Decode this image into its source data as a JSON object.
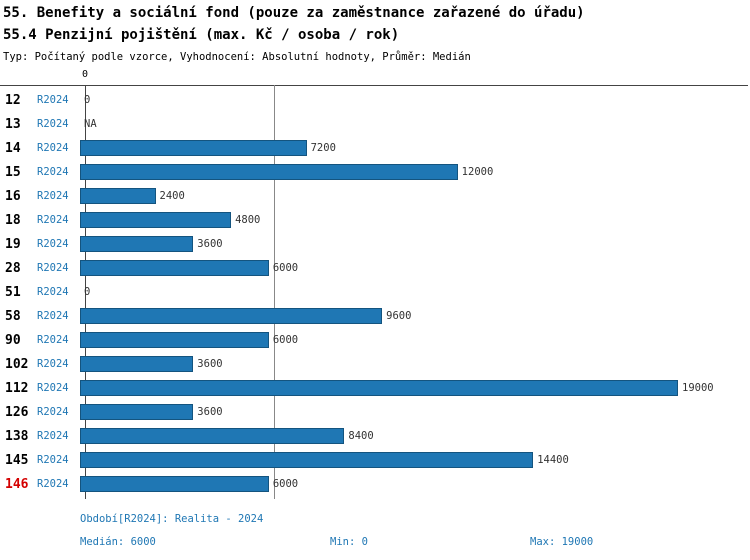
{
  "title_line1": "55. Benefity a sociální fond (pouze za zaměstnance zařazené do úřadu)",
  "title_line2": "55.4 Penzijní pojištění (max. Kč / osoba / rok)",
  "subtitle": "Typ: Počítaný podle vzorce, Vyhodnocení: Absolutní hodnoty, Průměr: Medián",
  "axis_zero_label": "0",
  "chart_data": {
    "type": "bar",
    "orientation": "horizontal",
    "categories": [
      "12",
      "13",
      "14",
      "15",
      "16",
      "18",
      "19",
      "28",
      "51",
      "58",
      "90",
      "102",
      "112",
      "126",
      "138",
      "145",
      "146"
    ],
    "period_label": "R2024",
    "values": [
      0,
      null,
      7200,
      12000,
      2400,
      4800,
      3600,
      6000,
      0,
      9600,
      6000,
      3600,
      19000,
      3600,
      8400,
      14400,
      6000
    ],
    "value_labels": [
      "0",
      "NA",
      "7200",
      "12000",
      "2400",
      "4800",
      "3600",
      "6000",
      "0",
      "9600",
      "6000",
      "3600",
      "19000",
      "3600",
      "8400",
      "14400",
      "6000"
    ],
    "xlim": [
      0,
      19000
    ],
    "median": 6000,
    "min": 0,
    "max": 19000,
    "highlight_category": "146",
    "bar_color": "#1f77b4",
    "highlight_color": "#d40000",
    "grid": false,
    "legend": "none"
  },
  "footer": {
    "period": "Období[R2024]: Realita - 2024",
    "median": "Medián: 6000",
    "min": "Min: 0",
    "max": "Max: 19000"
  }
}
